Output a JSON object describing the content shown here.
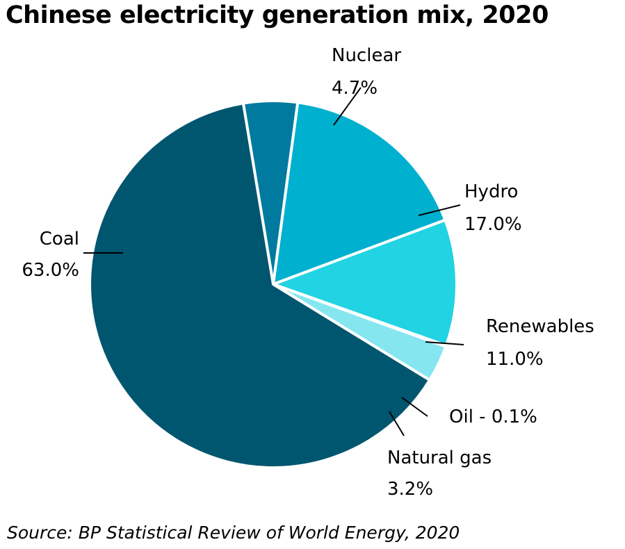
{
  "title": "Chinese electricity generation mix, 2020",
  "source": "Source: BP Statistical Review of World Energy, 2020",
  "chart_data": {
    "type": "pie",
    "title": "Chinese electricity generation mix, 2020",
    "slices": [
      {
        "name": "Nuclear",
        "value": 4.7,
        "label": "4.7%",
        "color": "#007a9e"
      },
      {
        "name": "Hydro",
        "value": 17.0,
        "label": "17.0%",
        "color": "#00b0cf"
      },
      {
        "name": "Renewables",
        "value": 11.0,
        "label": "11.0%",
        "color": "#22d3e3"
      },
      {
        "name": "Oil - 0.1%",
        "value": 0.1,
        "label": "",
        "color": "#22d3e3"
      },
      {
        "name": "Natural gas",
        "value": 3.2,
        "label": "3.2%",
        "color": "#85e6f0"
      },
      {
        "name": "Coal",
        "value": 63.0,
        "label": "63.0%",
        "color": "#00566f"
      }
    ],
    "start_angle_deg": 350.6,
    "legend": "none",
    "labels": "outside-with-leader-lines"
  }
}
